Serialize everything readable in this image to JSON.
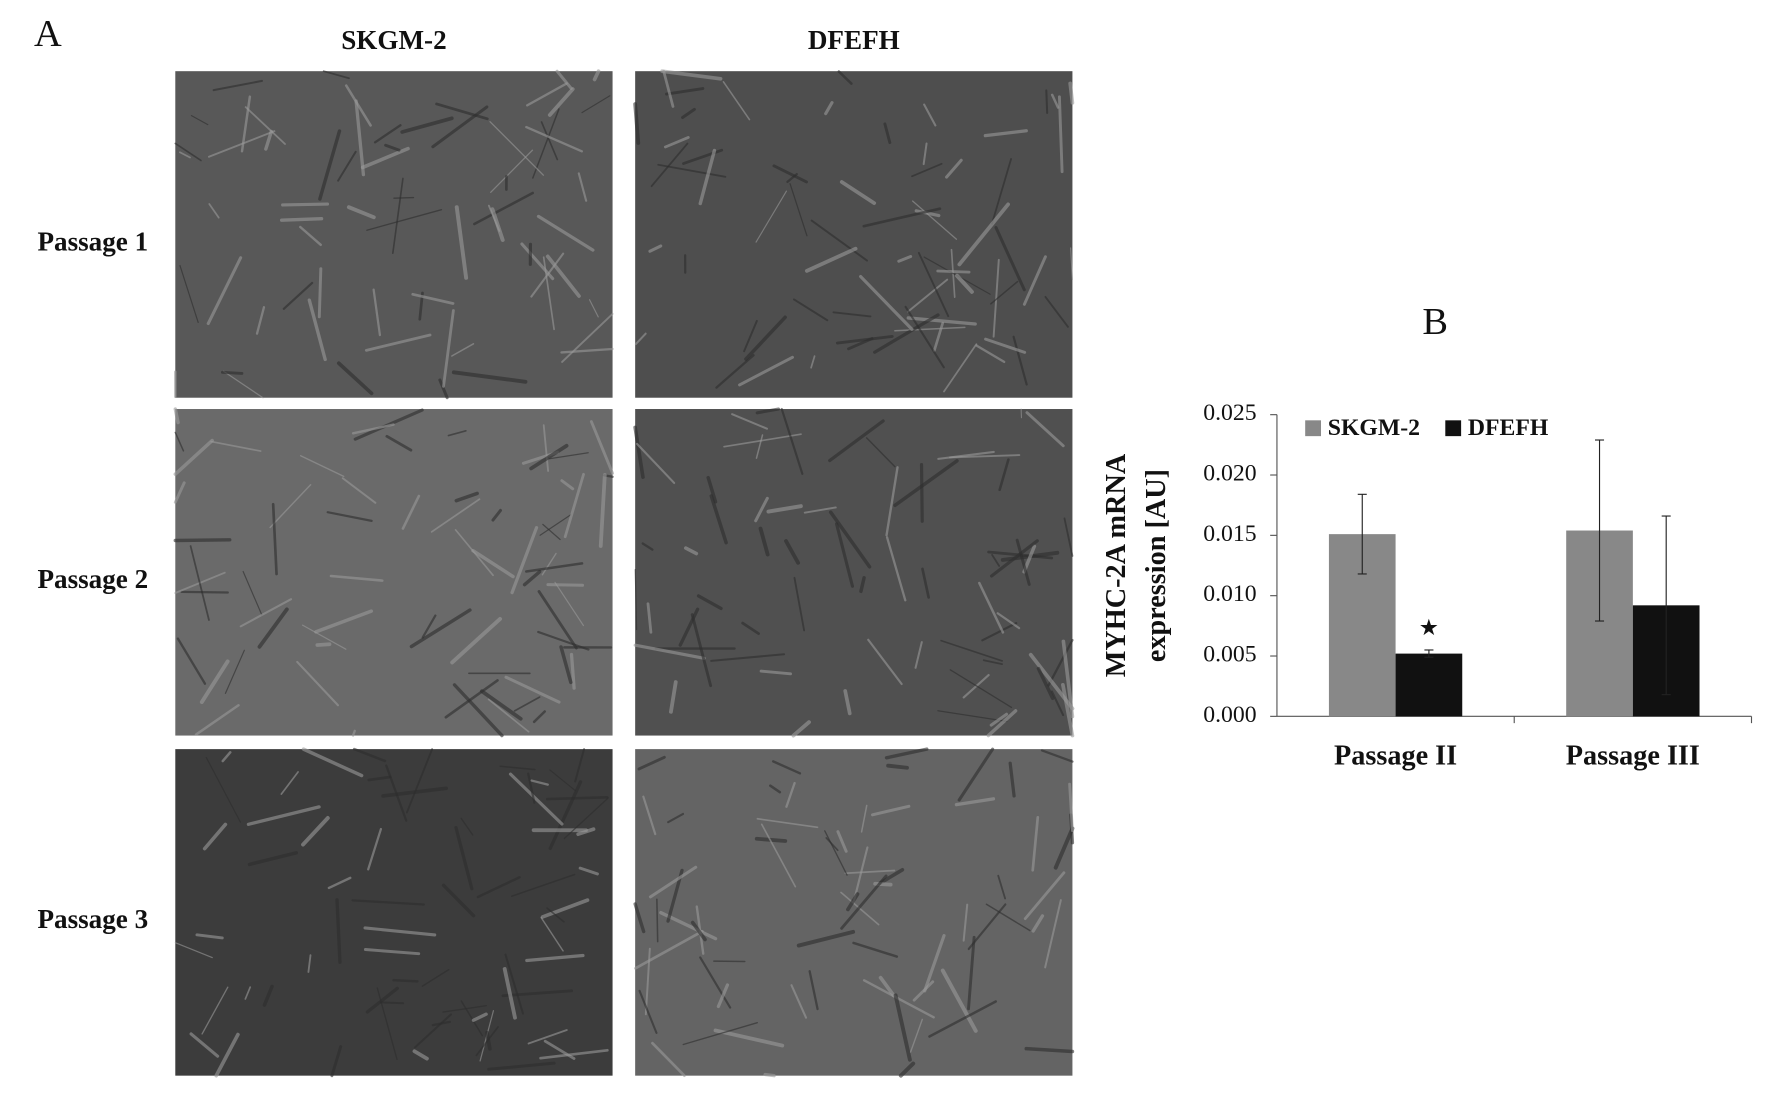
{
  "panel_a": {
    "label": "A",
    "columns": [
      "SKGM-2",
      "DFEFH"
    ],
    "rows": [
      "Passage 1",
      "Passage 2",
      "Passage 3"
    ]
  },
  "chart_data": {
    "type": "bar",
    "panel_label": "B",
    "ylabel": [
      "MYHC-2A mRNA",
      "expression [AU]"
    ],
    "categories": [
      "Passage II",
      "Passage III"
    ],
    "series": [
      {
        "name": "SKGM-2",
        "color": "#888888",
        "values": [
          0.0151,
          0.0154
        ],
        "errors": [
          0.0033,
          0.0075
        ]
      },
      {
        "name": "DFEFH",
        "color": "#111111",
        "values": [
          0.0052,
          0.0092
        ],
        "errors": [
          0.0003,
          0.0074
        ]
      }
    ],
    "annotations": [
      {
        "text": "★",
        "category": 0,
        "series": 1
      }
    ],
    "ylim": [
      0,
      0.025
    ],
    "yticks": [
      {
        "value": 0,
        "label": "0.000"
      },
      {
        "value": 0.005,
        "label": "0.005"
      },
      {
        "value": 0.01,
        "label": "0.010"
      },
      {
        "value": 0.015,
        "label": "0.015"
      },
      {
        "value": 0.02,
        "label": "0.020"
      },
      {
        "value": 0.025,
        "label": "0.025"
      }
    ],
    "legend": "top-left"
  }
}
